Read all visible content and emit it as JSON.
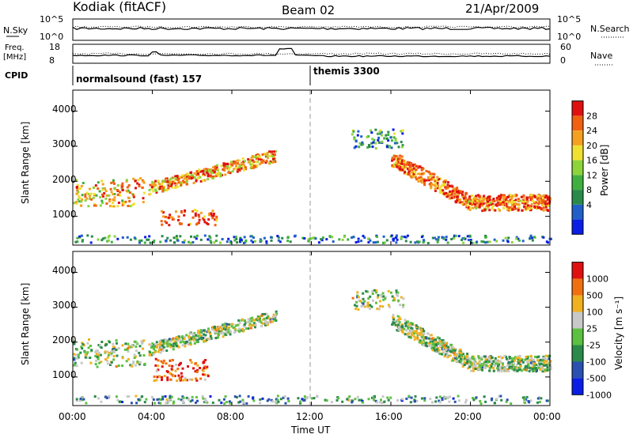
{
  "header": {
    "station": "Kodiak (fitACF)",
    "beam": "Beam 02",
    "date": "21/Apr/2009"
  },
  "strips": {
    "nsky_label": "N.Sky",
    "nsky_ticks": [
      "10^5",
      "10^0"
    ],
    "nsearch_label": "N.Search",
    "nsearch_ticks": [
      "10^5",
      "10^0"
    ],
    "freq_label_1": "Freq.",
    "freq_label_2": "[MHz]",
    "freq_ticks": [
      "18",
      "8"
    ],
    "nave_label": "Nave",
    "nave_ticks": [
      "60",
      "0"
    ],
    "cpid_label": "CPID",
    "cpid_segments": [
      {
        "text": "normalsound (fast) 157",
        "start_hour": 0
      },
      {
        "text": "themis 3300",
        "start_hour": 12
      }
    ]
  },
  "chart_data": [
    {
      "type": "heatmap",
      "name": "power",
      "ylabel": "Slant Range [km]",
      "yticks": [
        "4000",
        "3000",
        "2000",
        "1000"
      ],
      "ytick_values": [
        4000,
        3000,
        2000,
        1000
      ],
      "ylim": [
        180,
        4600
      ],
      "xlim_hours": [
        0,
        24
      ],
      "colorbar_label": "Power [dB]",
      "colorbar_ticks": [
        "28",
        "24",
        "20",
        "16",
        "12",
        "8",
        "4"
      ],
      "colors": [
        "#0a1ee6",
        "#2060c8",
        "#2a8a4a",
        "#3fb040",
        "#8cd43a",
        "#f0e030",
        "#f5a020",
        "#f06010",
        "#e01010"
      ],
      "bands": [
        {
          "t0": 0.0,
          "t1": 3.6,
          "r0": 1250,
          "r1": 2050,
          "level": 0.7
        },
        {
          "t0": 3.8,
          "t1": 10.2,
          "r0": 1700,
          "r1": 2800,
          "level": 0.75
        },
        {
          "t0": 4.4,
          "t1": 7.2,
          "r0": 700,
          "r1": 1150,
          "level": 0.9
        },
        {
          "t0": 14.0,
          "t1": 16.6,
          "r0": 2900,
          "r1": 3450,
          "level": 0.3
        },
        {
          "t0": 16.0,
          "t1": 24.0,
          "r0": 1000,
          "r1": 2700,
          "level": 0.85
        },
        {
          "t0": 0.0,
          "t1": 24.0,
          "r0": 200,
          "r1": 420,
          "level": 0.25
        }
      ]
    },
    {
      "type": "heatmap",
      "name": "velocity",
      "ylabel": "Slant Range [km]",
      "yticks": [
        "4000",
        "3000",
        "2000",
        "1000"
      ],
      "ytick_values": [
        4000,
        3000,
        2000,
        1000
      ],
      "ylim": [
        180,
        4600
      ],
      "xlim_hours": [
        0,
        24
      ],
      "colorbar_label": "Velocity [m s⁻¹]",
      "colorbar_ticks": [
        "1000",
        "500",
        "100",
        "25",
        "-25",
        "-100",
        "-500",
        "-1000"
      ],
      "colors": [
        "#0a1ee6",
        "#2a50b0",
        "#2a8a4a",
        "#5cc040",
        "#c8c8c8",
        "#f0b020",
        "#f07010",
        "#e01010"
      ],
      "bands": [
        {
          "t0": 0.0,
          "t1": 3.6,
          "r0": 1250,
          "r1": 2050,
          "level": 0.5
        },
        {
          "t0": 3.8,
          "t1": 10.2,
          "r0": 1700,
          "r1": 2800,
          "level": 0.5
        },
        {
          "t0": 4.0,
          "t1": 6.8,
          "r0": 850,
          "r1": 1500,
          "level": 0.85
        },
        {
          "t0": 14.0,
          "t1": 16.6,
          "r0": 2900,
          "r1": 3450,
          "level": 0.5
        },
        {
          "t0": 16.0,
          "t1": 24.0,
          "r0": 1000,
          "r1": 2700,
          "level": 0.5
        },
        {
          "t0": 0.0,
          "t1": 24.0,
          "r0": 200,
          "r1": 420,
          "level": 0.35
        }
      ]
    }
  ],
  "xaxis": {
    "ticks": [
      "00:00",
      "04:00",
      "08:00",
      "12:00",
      "16:00",
      "20:00",
      "00:00"
    ],
    "tick_hours": [
      0,
      4,
      8,
      12,
      16,
      20,
      24
    ],
    "label": "Time UT"
  }
}
